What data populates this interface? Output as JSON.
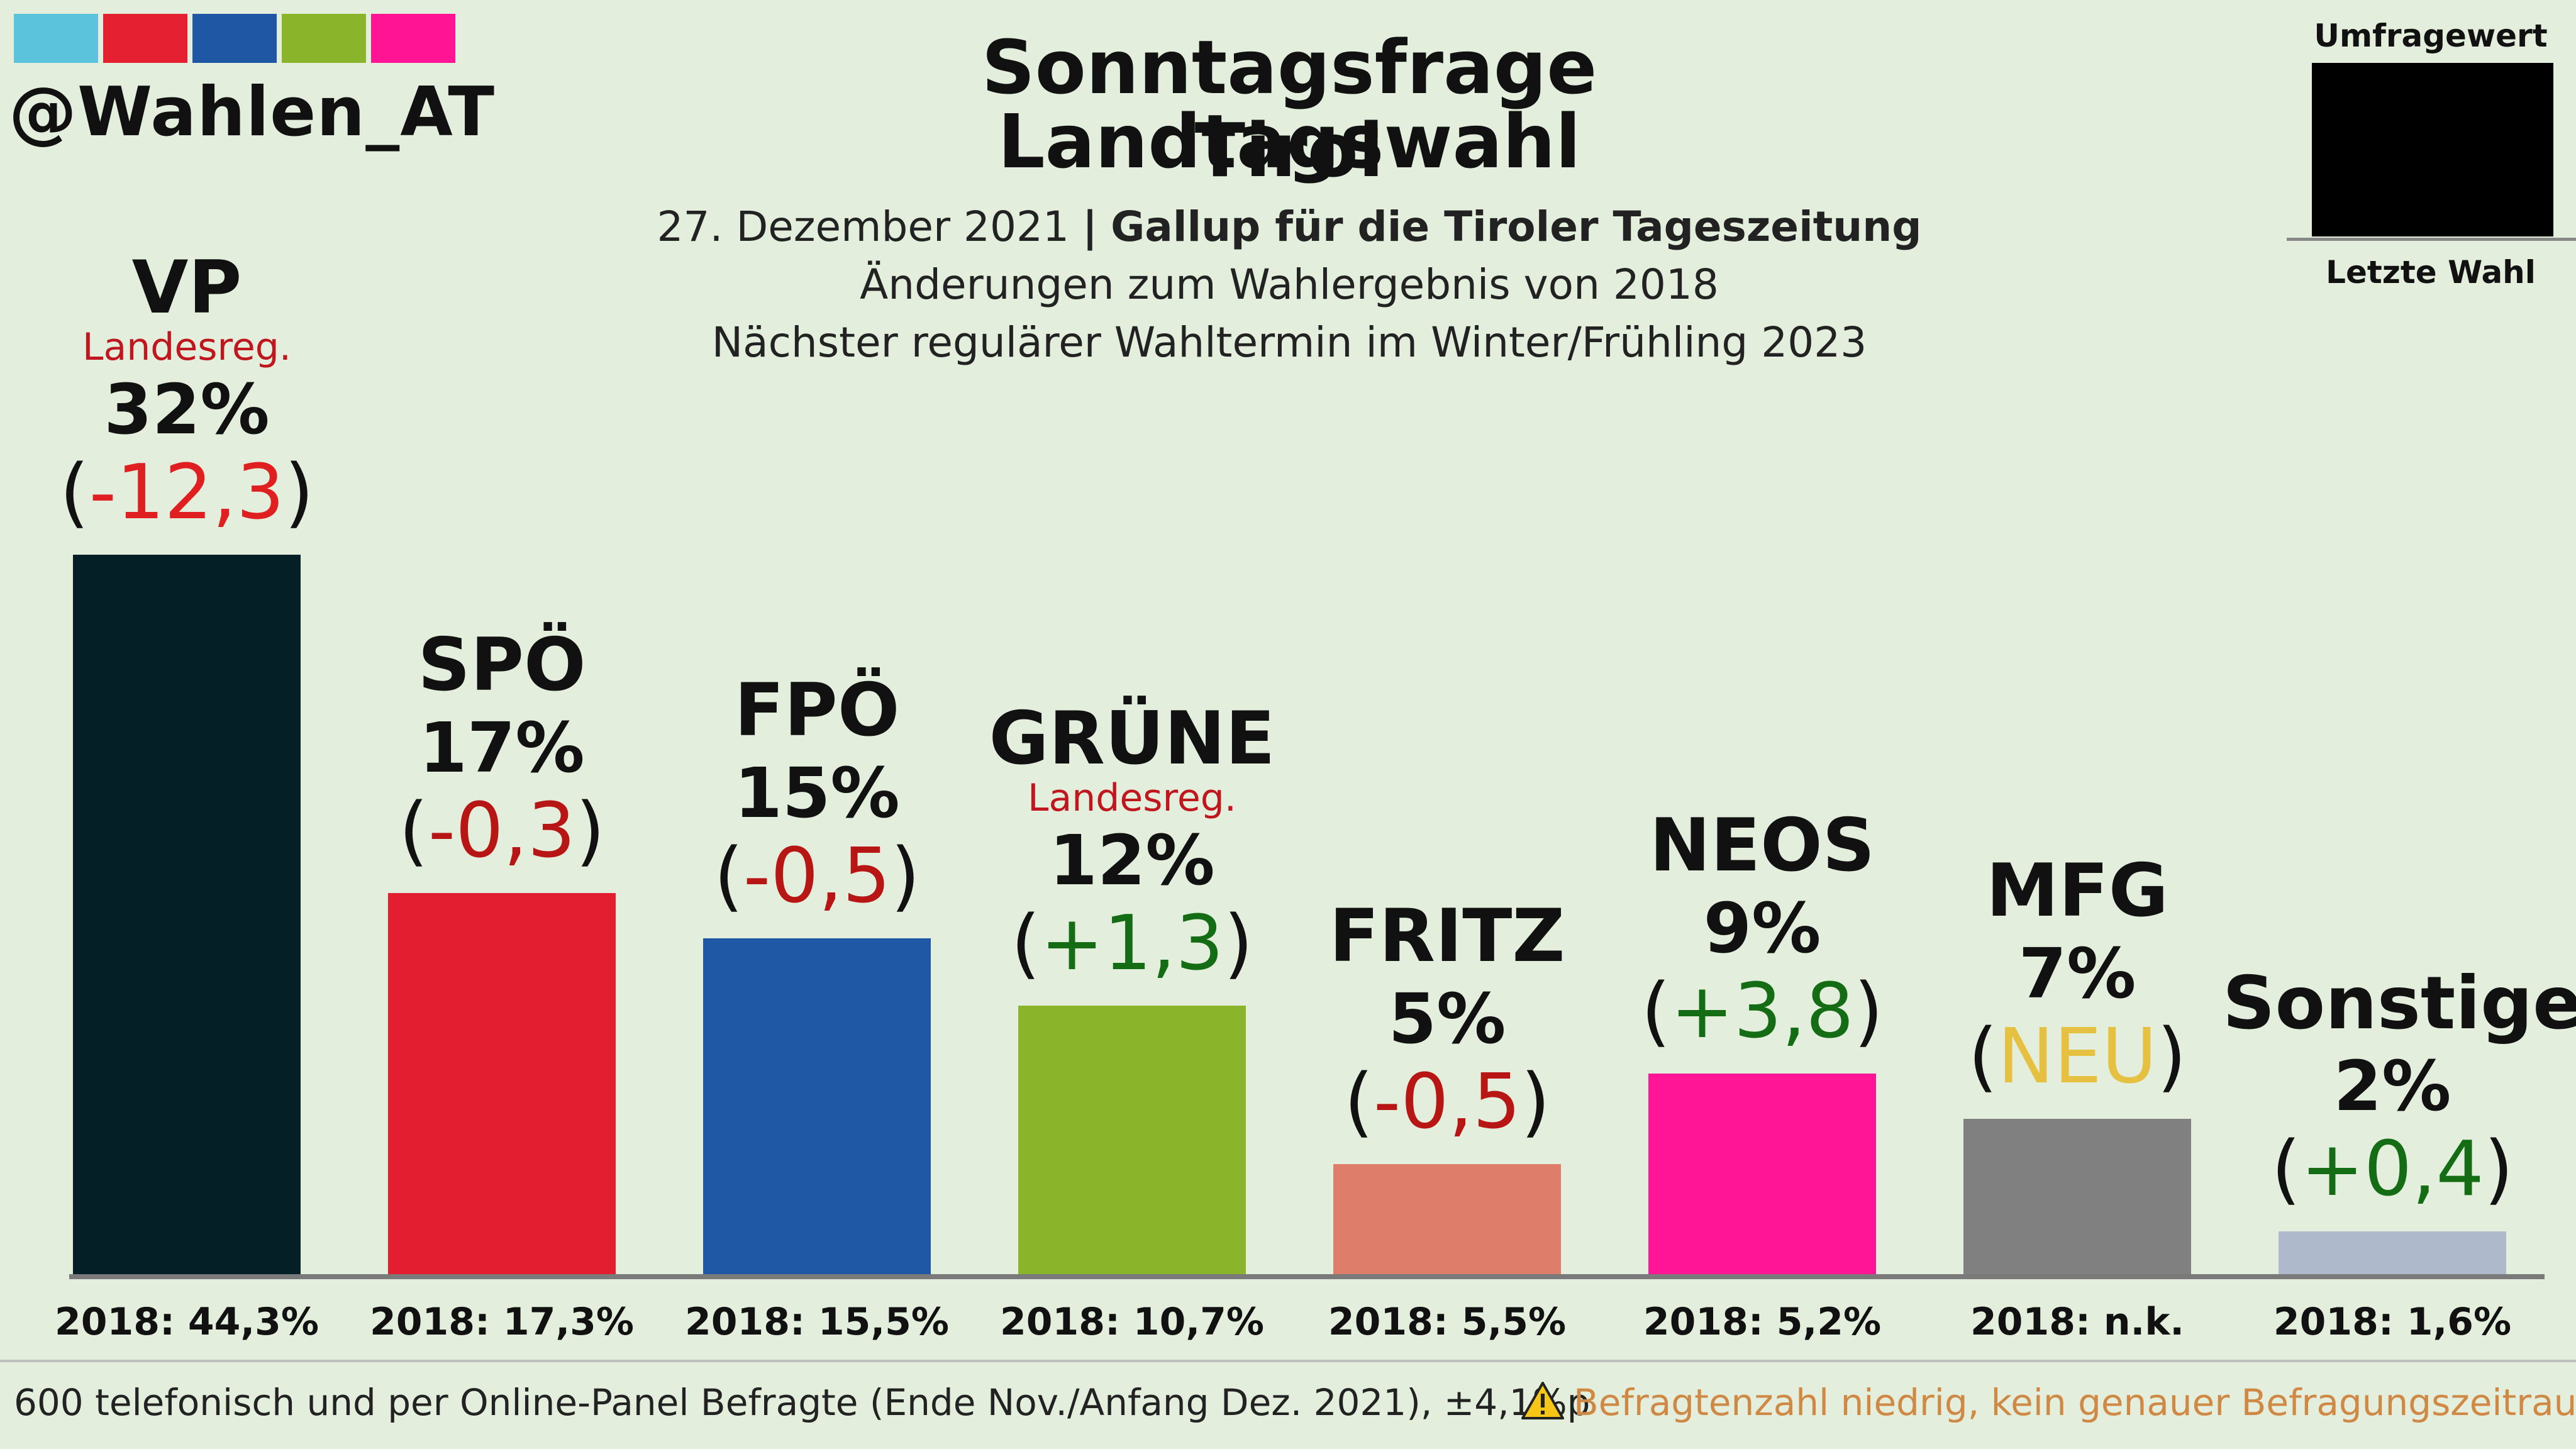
{
  "brand": {
    "handle": "@Wahlen_AT",
    "strip_colors": [
      "#5bc4dc",
      "#e42031",
      "#1f57a4",
      "#8ab42a",
      "#ff1493"
    ]
  },
  "header": {
    "title_line1": "Sonntagsfrage Landtagswahl",
    "title_line2": "Tirol",
    "date": "27. Dezember 2021",
    "separator": "|",
    "institute": "Gallup für die Tiroler Tageszeitung",
    "changes_note": "Änderungen zum Wahlergebnis von 2018",
    "next_election": "Nächster regulärer Wahltermin im Winter/Frühling 2023"
  },
  "legend": {
    "top": "Umfragewert",
    "bottom": "Letzte Wahl"
  },
  "footer": {
    "method": "600 telefonisch und per Online-Panel Befragte (Ende Nov./Anfang Dez. 2021), ±4,1%p",
    "warning": "Befragtenzahl niedrig, kein genauer Befragungszeitraum",
    "warning_icon": "warning-triangle-icon"
  },
  "chart_data": {
    "type": "bar",
    "title": "Sonntagsfrage Landtagswahl Tirol",
    "categories": [
      "VP",
      "SPÖ",
      "FPÖ",
      "GRÜNE",
      "FRITZ",
      "NEOS",
      "MFG",
      "Sonstige"
    ],
    "values": [
      32,
      17,
      15,
      12,
      5,
      9,
      7,
      2
    ],
    "ylim": [
      0,
      32
    ],
    "parties": [
      {
        "name": "VP",
        "gov": "Landesreg.",
        "value": 32,
        "pct": "32%",
        "change": "-12,3",
        "change_color": "#e02020",
        "prev": "2018: 44,3%",
        "color": "#051f26"
      },
      {
        "name": "SPÖ",
        "gov": "",
        "value": 17,
        "pct": "17%",
        "change": "-0,3",
        "change_color": "#b81515",
        "prev": "2018: 17,3%",
        "color": "#e31e31"
      },
      {
        "name": "FPÖ",
        "gov": "",
        "value": 15,
        "pct": "15%",
        "change": "-0,5",
        "change_color": "#b81515",
        "prev": "2018: 15,5%",
        "color": "#1f59a6"
      },
      {
        "name": "GRÜNE",
        "gov": "Landesreg.",
        "value": 12,
        "pct": "12%",
        "change": "+1,3",
        "change_color": "#146c14",
        "prev": "2018: 10,7%",
        "color": "#8ab52a"
      },
      {
        "name": "FRITZ",
        "gov": "",
        "value": 5,
        "pct": "5%",
        "change": "-0,5",
        "change_color": "#b81515",
        "prev": "2018: 5,5%",
        "color": "#de7e6a"
      },
      {
        "name": "NEOS",
        "gov": "",
        "value": 9,
        "pct": "9%",
        "change": "+3,8",
        "change_color": "#146c14",
        "prev": "2018: 5,2%",
        "color": "#ff1595"
      },
      {
        "name": "MFG",
        "gov": "",
        "value": 7,
        "pct": "7%",
        "change": "NEU",
        "change_color": "#e6c040",
        "prev": "2018: n.k.",
        "color": "#808080"
      },
      {
        "name": "Sonstige",
        "gov": "",
        "value": 2,
        "pct": "2%",
        "change": "+0,4",
        "change_color": "#146c14",
        "prev": "2018: 1,6%",
        "color": "#aeb9cc"
      }
    ]
  }
}
